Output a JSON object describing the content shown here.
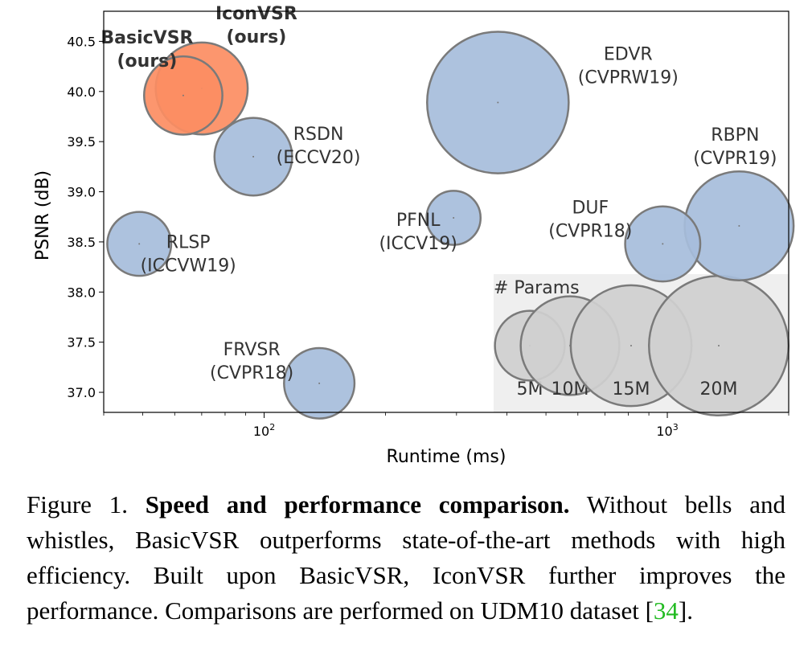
{
  "chart_data": {
    "type": "scatter",
    "xlabel": "Runtime (ms)",
    "ylabel": "PSNR (dB)",
    "xscale": "log",
    "xlim": [
      40,
      2000
    ],
    "ylim": [
      36.8,
      40.8
    ],
    "xticks": [
      {
        "base": "10",
        "exp": "2",
        "value": 100
      },
      {
        "base": "10",
        "exp": "3",
        "value": 1000
      }
    ],
    "yticks": [
      "37.0",
      "37.5",
      "38.0",
      "38.5",
      "39.0",
      "39.5",
      "40.0",
      "40.5"
    ],
    "points": [
      {
        "name": "BasicVSR",
        "label": [
          "BasicVSR",
          "(ours)"
        ],
        "x": 63,
        "y": 39.96,
        "params": 6.3,
        "color": "#fc8d62",
        "bold": true
      },
      {
        "name": "IconVSR",
        "label": [
          "IconVSR",
          "(ours)"
        ],
        "x": 70,
        "y": 40.03,
        "params": 8.7,
        "color": "#fc8d62",
        "bold": true
      },
      {
        "name": "EDVR",
        "label": [
          "EDVR",
          "(CVPRW19)"
        ],
        "x": 380,
        "y": 39.89,
        "params": 20.6,
        "color": "#a6bddb",
        "bold": false
      },
      {
        "name": "RSDN",
        "label": [
          "RSDN",
          "(ECCV20)"
        ],
        "x": 94,
        "y": 39.35,
        "params": 6.2,
        "color": "#a6bddb",
        "bold": false
      },
      {
        "name": "RBPN",
        "label": [
          "RBPN",
          "(CVPR19)"
        ],
        "x": 1507,
        "y": 38.66,
        "params": 12.2,
        "color": "#a6bddb",
        "bold": false
      },
      {
        "name": "PFNL",
        "label": [
          "PFNL",
          "(ICCV19)"
        ],
        "x": 295,
        "y": 38.74,
        "params": 3.0,
        "color": "#a6bddb",
        "bold": false
      },
      {
        "name": "DUF",
        "label": [
          "DUF",
          "(CVPR18)"
        ],
        "x": 974,
        "y": 38.48,
        "params": 5.8,
        "color": "#a6bddb",
        "bold": false
      },
      {
        "name": "RLSP",
        "label": [
          "RLSP",
          "(ICCVW19)"
        ],
        "x": 49,
        "y": 38.48,
        "params": 4.2,
        "color": "#a6bddb",
        "bold": false
      },
      {
        "name": "FRVSR",
        "label": [
          "FRVSR",
          "(CVPR18)"
        ],
        "x": 137,
        "y": 37.09,
        "params": 5.1,
        "color": "#a6bddb",
        "bold": false
      }
    ],
    "legend": {
      "title": "# Params",
      "placement": "bottom-right",
      "entries": [
        {
          "label": "5M",
          "params": 5
        },
        {
          "label": "10M",
          "params": 10
        },
        {
          "label": "15M",
          "params": 15
        },
        {
          "label": "20M",
          "params": 20
        }
      ]
    }
  },
  "caption": {
    "prefix": "Figure 1. ",
    "bold": "Speed and performance comparison.",
    "body": " Without bells and whistles, BasicVSR outperforms state-of-the-art methods with high efficiency. Built upon BasicVSR, IconVSR further improves the performance. Comparisons are performed on UDM10 dataset [",
    "cite": "34",
    "suffix": "]."
  }
}
